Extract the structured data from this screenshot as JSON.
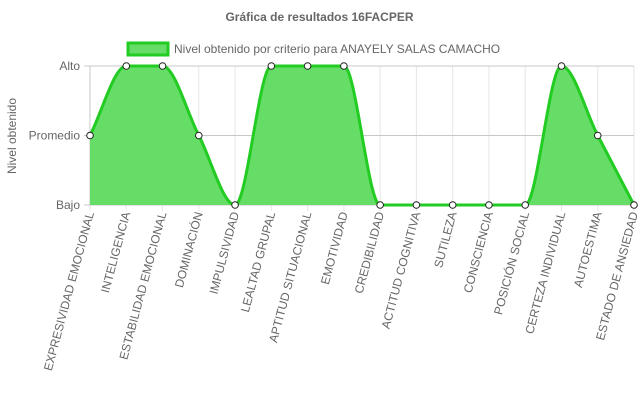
{
  "chart_data": {
    "type": "area",
    "title": "Gráfica de resultados 16FACPER",
    "xlabel": "",
    "ylabel": "Nivel obtenido",
    "y_levels": [
      "Bajo",
      "Promedio",
      "Alto"
    ],
    "ylim": [
      0,
      2
    ],
    "grid": true,
    "legend_position": "top",
    "categories": [
      "EXPRESIVIDAD EMOCIONAL",
      "INTELIGENCIA",
      "ESTABILIDAD EMOCIONAL",
      "DOMINACIÓN",
      "IMPULSIVIDAD",
      "LEALTAD GRUPAL",
      "APTITUD SITUACIONAL",
      "EMOTIVIDAD",
      "CREDIBILIDAD",
      "ACTITUD COGNITIVA",
      "SUTILEZA",
      "CONSCIENCIA",
      "POSICIÓN SOCIAL",
      "CERTEZA INDIVIDUAL",
      "AUTOESTIMA",
      "ESTADO DE ANSIEDAD"
    ],
    "series": [
      {
        "name": "Nivel obtenido por criterio para ANAYELY SALAS CAMACHO",
        "values": [
          1,
          2,
          2,
          1,
          0,
          2,
          2,
          2,
          0,
          0,
          0,
          0,
          0,
          2,
          1,
          0
        ],
        "fill_color": "#66dd66",
        "line_color": "#22cc22"
      }
    ]
  }
}
